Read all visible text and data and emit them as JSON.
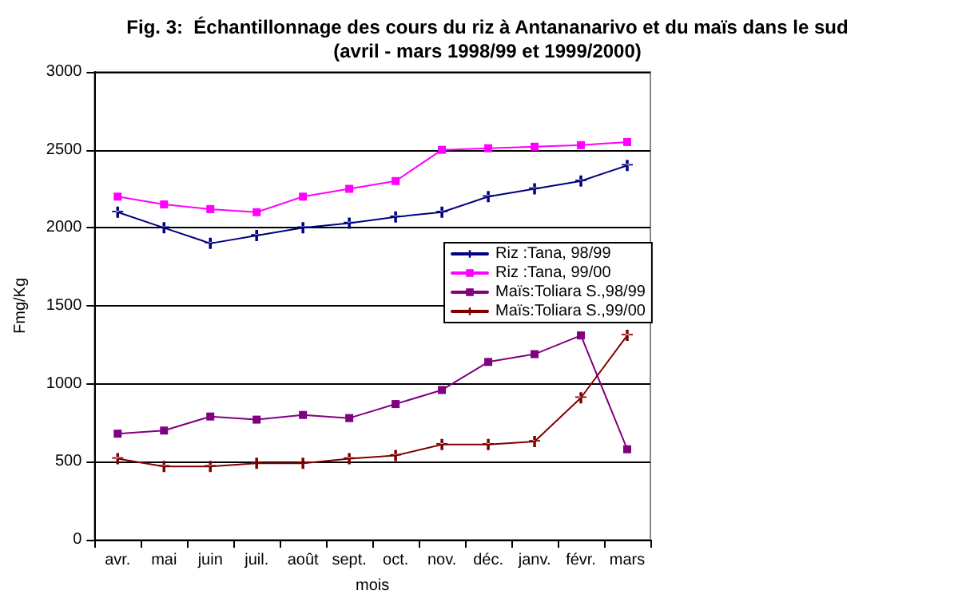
{
  "chart_data": {
    "type": "line",
    "title": "Fig. 3:  Échantillonnage des cours du riz à Antananarivo et du maïs dans le sud",
    "subtitle": "(avril - mars 1998/99 et 1999/2000)",
    "xlabel": "mois",
    "ylabel": "Fmg/Kg",
    "categories": [
      "avr.",
      "mai",
      "juin",
      "juil.",
      "août",
      "sept.",
      "oct.",
      "nov.",
      "déc.",
      "janv.",
      "févr.",
      "mars"
    ],
    "series": [
      {
        "name": "Riz :Tana, 98/99",
        "color": "#000080",
        "marker": "cross",
        "values": [
          2100,
          2000,
          1900,
          1950,
          2000,
          2030,
          2070,
          2100,
          2200,
          2250,
          2300,
          2400
        ]
      },
      {
        "name": "Riz :Tana, 99/00",
        "color": "#ff00ff",
        "marker": "square",
        "values": [
          2200,
          2150,
          2120,
          2100,
          2200,
          2250,
          2300,
          2500,
          2510,
          2520,
          2530,
          2550
        ]
      },
      {
        "name": "Maïs:Toliara S.,98/99",
        "color": "#800080",
        "marker": "square",
        "values": [
          680,
          700,
          790,
          770,
          800,
          780,
          870,
          960,
          1140,
          1190,
          1310,
          580
        ]
      },
      {
        "name": "Maïs:Toliara S.,99/00",
        "color": "#800000",
        "marker": "cross",
        "values": [
          520,
          470,
          470,
          490,
          490,
          520,
          540,
          610,
          610,
          630,
          910,
          1310
        ]
      }
    ],
    "ylim": [
      0,
      3000
    ],
    "yticks": [
      0,
      500,
      1000,
      1500,
      2000,
      2500,
      3000
    ],
    "grid": "y",
    "legend": "right",
    "line_style": "solid"
  }
}
